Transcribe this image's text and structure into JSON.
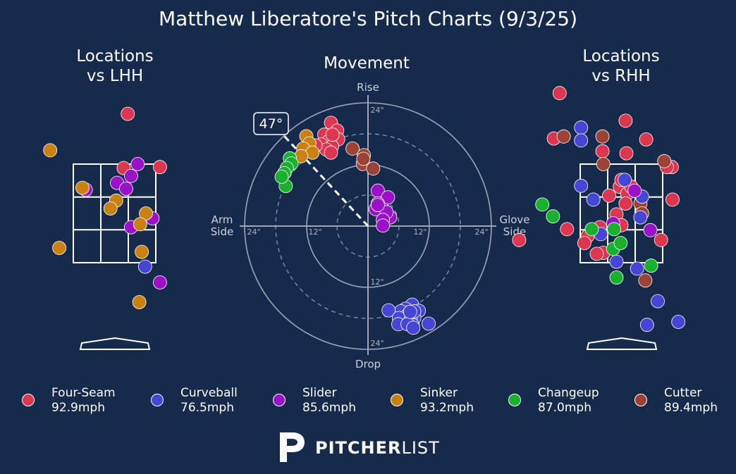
{
  "title": "Matthew Liberatore's Pitch Charts (9/3/25)",
  "panels": {
    "lhh_title": "Locations\nvs LHH",
    "movement_title": "Movement",
    "rhh_title": "Locations\nvs RHH"
  },
  "movement": {
    "rise": "Rise",
    "drop": "Drop",
    "arm_side": "Arm\nSide",
    "glove_side": "Glove\nSide",
    "ring_labels": [
      "24\"",
      "12\"",
      "12\"",
      "24\"",
      "24\"",
      "12\"",
      "12\"",
      "24\""
    ],
    "arm_angle": "47°"
  },
  "legend": [
    {
      "name": "Four-Seam",
      "speed": "92.9mph",
      "color": "#dc3650"
    },
    {
      "name": "Curveball",
      "speed": "76.5mph",
      "color": "#4646d6"
    },
    {
      "name": "Slider",
      "speed": "85.6mph",
      "color": "#9a12c8"
    },
    {
      "name": "Sinker",
      "speed": "93.2mph",
      "color": "#c98212"
    },
    {
      "name": "Changeup",
      "speed": "87.0mph",
      "color": "#18b02e"
    },
    {
      "name": "Cutter",
      "speed": "89.4mph",
      "color": "#9c4236"
    }
  ],
  "brand": {
    "bold": "PITCHER",
    "light": "LIST"
  },
  "chart_data": [
    {
      "type": "scatter",
      "title": "Locations vs LHH",
      "units": "strike-zone widths (x, 0 = plate center) / zone heights (y, 0 = bottom of zone)",
      "points": [
        {
          "pitch": "Four-Seam",
          "x": 0.16,
          "y": 1.51
        },
        {
          "pitch": "Four-Seam",
          "x": 0.11,
          "y": 0.96
        },
        {
          "pitch": "Four-Seam",
          "x": 0.55,
          "y": 0.97
        },
        {
          "pitch": "Slider",
          "x": 0.28,
          "y": 1.0
        },
        {
          "pitch": "Slider",
          "x": 0.2,
          "y": 0.88
        },
        {
          "pitch": "Slider",
          "x": 0.03,
          "y": 0.81
        },
        {
          "pitch": "Slider",
          "x": 0.14,
          "y": 0.75
        },
        {
          "pitch": "Slider",
          "x": -0.35,
          "y": 0.74
        },
        {
          "pitch": "Slider",
          "x": 0.46,
          "y": 0.45
        },
        {
          "pitch": "Slider",
          "x": 0.2,
          "y": 0.36
        },
        {
          "pitch": "Slider",
          "x": 0.55,
          "y": -0.2
        },
        {
          "pitch": "Sinker",
          "x": -0.78,
          "y": 1.14
        },
        {
          "pitch": "Sinker",
          "x": -0.39,
          "y": 0.76
        },
        {
          "pitch": "Sinker",
          "x": 0.02,
          "y": 0.63
        },
        {
          "pitch": "Sinker",
          "x": -0.05,
          "y": 0.55
        },
        {
          "pitch": "Sinker",
          "x": 0.38,
          "y": 0.5
        },
        {
          "pitch": "Sinker",
          "x": 0.31,
          "y": 0.39
        },
        {
          "pitch": "Sinker",
          "x": -0.67,
          "y": 0.15
        },
        {
          "pitch": "Sinker",
          "x": 0.33,
          "y": 0.11
        },
        {
          "pitch": "Sinker",
          "x": 0.3,
          "y": -0.4
        },
        {
          "pitch": "Curveball",
          "x": 0.37,
          "y": -0.04
        }
      ]
    },
    {
      "type": "scatter",
      "title": "Movement",
      "units": "inches of break (x: negative = arm side, positive = glove side; y: positive = rise)",
      "xlim": [
        -24,
        24
      ],
      "ylim": [
        -24,
        24
      ],
      "arm_angle_deg": 47,
      "points": [
        {
          "pitch": "Four-Seam",
          "x": -7.2,
          "y": 20.1
        },
        {
          "pitch": "Four-Seam",
          "x": -6.0,
          "y": 18.6
        },
        {
          "pitch": "Four-Seam",
          "x": -8.5,
          "y": 17.8
        },
        {
          "pitch": "Four-Seam",
          "x": -5.8,
          "y": 16.9
        },
        {
          "pitch": "Four-Seam",
          "x": -7.7,
          "y": 16.5
        },
        {
          "pitch": "Four-Seam",
          "x": -9.1,
          "y": 15.9
        },
        {
          "pitch": "Four-Seam",
          "x": -7.0,
          "y": 15.5
        },
        {
          "pitch": "Four-Seam",
          "x": -8.1,
          "y": 14.9
        },
        {
          "pitch": "Four-Seam",
          "x": -10.2,
          "y": 15.7
        },
        {
          "pitch": "Four-Seam",
          "x": -7.2,
          "y": 14.3
        },
        {
          "pitch": "Four-Seam",
          "x": -6.9,
          "y": 17.8
        },
        {
          "pitch": "Cutter",
          "x": -3.0,
          "y": 15.1
        },
        {
          "pitch": "Cutter",
          "x": -0.8,
          "y": 13.8
        },
        {
          "pitch": "Cutter",
          "x": -1.0,
          "y": 12.1
        },
        {
          "pitch": "Cutter",
          "x": 1.0,
          "y": 11.2
        },
        {
          "pitch": "Cutter",
          "x": -0.9,
          "y": 13.1
        },
        {
          "pitch": "Sinker",
          "x": -12.0,
          "y": 17.5
        },
        {
          "pitch": "Sinker",
          "x": -11.4,
          "y": 16.1
        },
        {
          "pitch": "Sinker",
          "x": -12.6,
          "y": 15.1
        },
        {
          "pitch": "Sinker",
          "x": -10.8,
          "y": 14.3
        },
        {
          "pitch": "Sinker",
          "x": -13.0,
          "y": 13.6
        },
        {
          "pitch": "Changeup",
          "x": -15.2,
          "y": 13.2
        },
        {
          "pitch": "Changeup",
          "x": -14.9,
          "y": 12.2
        },
        {
          "pitch": "Changeup",
          "x": -15.8,
          "y": 11.3
        },
        {
          "pitch": "Changeup",
          "x": -16.3,
          "y": 10.3
        },
        {
          "pitch": "Changeup",
          "x": -16.0,
          "y": 7.8
        },
        {
          "pitch": "Changeup",
          "x": -16.8,
          "y": 9.6
        },
        {
          "pitch": "Slider",
          "x": 1.9,
          "y": 6.9
        },
        {
          "pitch": "Slider",
          "x": 3.9,
          "y": 5.6
        },
        {
          "pitch": "Slider",
          "x": 1.9,
          "y": 4.4
        },
        {
          "pitch": "Slider",
          "x": 3.0,
          "y": 3.2
        },
        {
          "pitch": "Slider",
          "x": 1.5,
          "y": 3.3
        },
        {
          "pitch": "Slider",
          "x": 4.3,
          "y": 1.7
        },
        {
          "pitch": "Slider",
          "x": 3.6,
          "y": 2.7
        },
        {
          "pitch": "Slider",
          "x": 2.9,
          "y": 1.2
        },
        {
          "pitch": "Slider",
          "x": 2.9,
          "y": 0.1
        },
        {
          "pitch": "Slider",
          "x": 1.9,
          "y": 4.1
        },
        {
          "pitch": "Curveball",
          "x": 8.6,
          "y": -15.3
        },
        {
          "pitch": "Curveball",
          "x": 7.3,
          "y": -16.1
        },
        {
          "pitch": "Curveball",
          "x": 6.4,
          "y": -16.6
        },
        {
          "pitch": "Curveball",
          "x": 4.0,
          "y": -16.4
        },
        {
          "pitch": "Curveball",
          "x": 9.9,
          "y": -16.5
        },
        {
          "pitch": "Curveball",
          "x": 7.8,
          "y": -17.2
        },
        {
          "pitch": "Curveball",
          "x": 9.0,
          "y": -17.9
        },
        {
          "pitch": "Curveball",
          "x": 6.0,
          "y": -17.9
        },
        {
          "pitch": "Curveball",
          "x": 8.3,
          "y": -18.2
        },
        {
          "pitch": "Curveball",
          "x": 5.9,
          "y": -19.1
        },
        {
          "pitch": "Curveball",
          "x": 8.7,
          "y": -19.3
        },
        {
          "pitch": "Curveball",
          "x": 11.8,
          "y": -19.0
        },
        {
          "pitch": "Curveball",
          "x": 7.7,
          "y": -19.1
        },
        {
          "pitch": "Curveball",
          "x": 8.8,
          "y": -19.8
        },
        {
          "pitch": "Curveball",
          "x": 9.0,
          "y": -16.6
        },
        {
          "pitch": "Curveball",
          "x": 8.2,
          "y": -16.7
        }
      ]
    },
    {
      "type": "scatter",
      "title": "Locations vs RHH",
      "units": "strike-zone widths (x, 0 = plate center) / zone heights (y, 0 = bottom of zone)",
      "points": [
        {
          "pitch": "Four-Seam",
          "x": -0.75,
          "y": 1.72
        },
        {
          "pitch": "Four-Seam",
          "x": -0.82,
          "y": 1.26
        },
        {
          "pitch": "Four-Seam",
          "x": 0.05,
          "y": 1.44
        },
        {
          "pitch": "Four-Seam",
          "x": -0.23,
          "y": 1.13
        },
        {
          "pitch": "Four-Seam",
          "x": 0.06,
          "y": 1.11
        },
        {
          "pitch": "Four-Seam",
          "x": 0.3,
          "y": 1.25
        },
        {
          "pitch": "Four-Seam",
          "x": 0.61,
          "y": 0.97
        },
        {
          "pitch": "Four-Seam",
          "x": 0.55,
          "y": 0.97
        },
        {
          "pitch": "Four-Seam",
          "x": -0.02,
          "y": 0.77
        },
        {
          "pitch": "Four-Seam",
          "x": 0.0,
          "y": 0.84
        },
        {
          "pitch": "Four-Seam",
          "x": 0.07,
          "y": 0.7
        },
        {
          "pitch": "Four-Seam",
          "x": 0.12,
          "y": 0.77
        },
        {
          "pitch": "Four-Seam",
          "x": -0.15,
          "y": 0.68
        },
        {
          "pitch": "Four-Seam",
          "x": 0.05,
          "y": 0.6
        },
        {
          "pitch": "Four-Seam",
          "x": -0.06,
          "y": 0.49
        },
        {
          "pitch": "Four-Seam",
          "x": 0.0,
          "y": 0.38
        },
        {
          "pitch": "Four-Seam",
          "x": 0.62,
          "y": 0.64
        },
        {
          "pitch": "Four-Seam",
          "x": -0.66,
          "y": 0.34
        },
        {
          "pitch": "Four-Seam",
          "x": -0.26,
          "y": 0.36
        },
        {
          "pitch": "Four-Seam",
          "x": -0.41,
          "y": 0.27
        },
        {
          "pitch": "Four-Seam",
          "x": -0.45,
          "y": 0.2
        },
        {
          "pitch": "Four-Seam",
          "x": 0.48,
          "y": 0.23
        },
        {
          "pitch": "Four-Seam",
          "x": -1.24,
          "y": 0.23
        },
        {
          "pitch": "Four-Seam",
          "x": -0.22,
          "y": 0.1
        },
        {
          "pitch": "Four-Seam",
          "x": -0.3,
          "y": 0.09
        },
        {
          "pitch": "Cutter",
          "x": -0.7,
          "y": 1.28
        },
        {
          "pitch": "Cutter",
          "x": -0.23,
          "y": 1.28
        },
        {
          "pitch": "Cutter",
          "x": -0.22,
          "y": 1.0
        },
        {
          "pitch": "Cutter",
          "x": 0.52,
          "y": 1.03
        },
        {
          "pitch": "Cutter",
          "x": 0.23,
          "y": 0.6
        },
        {
          "pitch": "Cutter",
          "x": 0.25,
          "y": 0.5
        },
        {
          "pitch": "Cutter",
          "x": 0.29,
          "y": -0.18
        },
        {
          "pitch": "Curveball",
          "x": -0.49,
          "y": 1.37
        },
        {
          "pitch": "Curveball",
          "x": -0.49,
          "y": 1.24
        },
        {
          "pitch": "Curveball",
          "x": -0.49,
          "y": 0.78
        },
        {
          "pitch": "Curveball",
          "x": -0.34,
          "y": 0.64
        },
        {
          "pitch": "Curveball",
          "x": 0.04,
          "y": 0.84
        },
        {
          "pitch": "Curveball",
          "x": 0.25,
          "y": 0.67
        },
        {
          "pitch": "Curveball",
          "x": 0.23,
          "y": 0.46
        },
        {
          "pitch": "Curveball",
          "x": -0.25,
          "y": 0.29
        },
        {
          "pitch": "Curveball",
          "x": -0.06,
          "y": 0.01
        },
        {
          "pitch": "Curveball",
          "x": 0.19,
          "y": -0.06
        },
        {
          "pitch": "Curveball",
          "x": 0.44,
          "y": -0.39
        },
        {
          "pitch": "Curveball",
          "x": 0.31,
          "y": -0.63
        },
        {
          "pitch": "Curveball",
          "x": 0.69,
          "y": -0.6
        },
        {
          "pitch": "Slider",
          "x": 0.16,
          "y": 0.73
        },
        {
          "pitch": "Slider",
          "x": -0.1,
          "y": 0.4
        },
        {
          "pitch": "Slider",
          "x": 0.35,
          "y": 0.33
        },
        {
          "pitch": "Changeup",
          "x": -0.96,
          "y": 0.59
        },
        {
          "pitch": "Changeup",
          "x": -0.83,
          "y": 0.47
        },
        {
          "pitch": "Changeup",
          "x": -0.36,
          "y": 0.34
        },
        {
          "pitch": "Changeup",
          "x": -0.09,
          "y": 0.34
        },
        {
          "pitch": "Changeup",
          "x": -0.1,
          "y": 0.14
        },
        {
          "pitch": "Changeup",
          "x": -0.01,
          "y": 0.2
        },
        {
          "pitch": "Changeup",
          "x": 0.36,
          "y": -0.03
        },
        {
          "pitch": "Changeup",
          "x": -0.06,
          "y": -0.15
        }
      ]
    }
  ]
}
